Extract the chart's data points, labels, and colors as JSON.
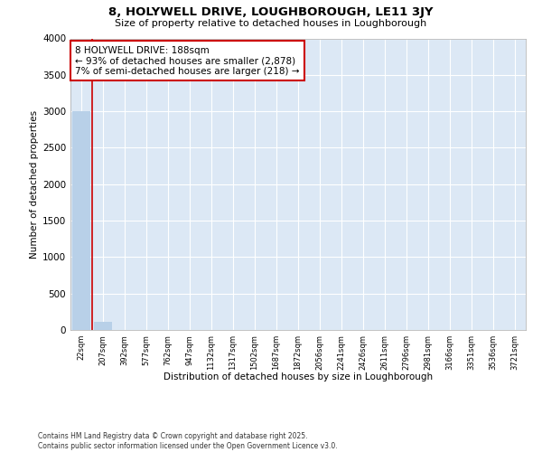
{
  "title": "8, HOLYWELL DRIVE, LOUGHBOROUGH, LE11 3JY",
  "subtitle": "Size of property relative to detached houses in Loughborough",
  "xlabel": "Distribution of detached houses by size in Loughborough",
  "ylabel": "Number of detached properties",
  "footer_line1": "Contains HM Land Registry data © Crown copyright and database right 2025.",
  "footer_line2": "Contains public sector information licensed under the Open Government Licence v3.0.",
  "annotation_line1": "8 HOLYWELL DRIVE: 188sqm",
  "annotation_line2": "← 93% of detached houses are smaller (2,878)",
  "annotation_line3": "7% of semi-detached houses are larger (218) →",
  "bar_color": "#b8d0e8",
  "vline_color": "#cc0000",
  "vline_x_index": 1,
  "annotation_box_edgecolor": "#cc0000",
  "plot_bg_color": "#dce8f5",
  "fig_bg_color": "#ffffff",
  "grid_color": "#ffffff",
  "categories": [
    "22sqm",
    "207sqm",
    "392sqm",
    "577sqm",
    "762sqm",
    "947sqm",
    "1132sqm",
    "1317sqm",
    "1502sqm",
    "1687sqm",
    "1872sqm",
    "2056sqm",
    "2241sqm",
    "2426sqm",
    "2611sqm",
    "2796sqm",
    "2981sqm",
    "3166sqm",
    "3351sqm",
    "3536sqm",
    "3721sqm"
  ],
  "values": [
    3000,
    115,
    2,
    1,
    0,
    0,
    0,
    0,
    0,
    0,
    0,
    0,
    0,
    0,
    0,
    0,
    0,
    0,
    0,
    0,
    0
  ],
  "ylim": [
    0,
    4000
  ],
  "yticks": [
    0,
    500,
    1000,
    1500,
    2000,
    2500,
    3000,
    3500,
    4000
  ]
}
